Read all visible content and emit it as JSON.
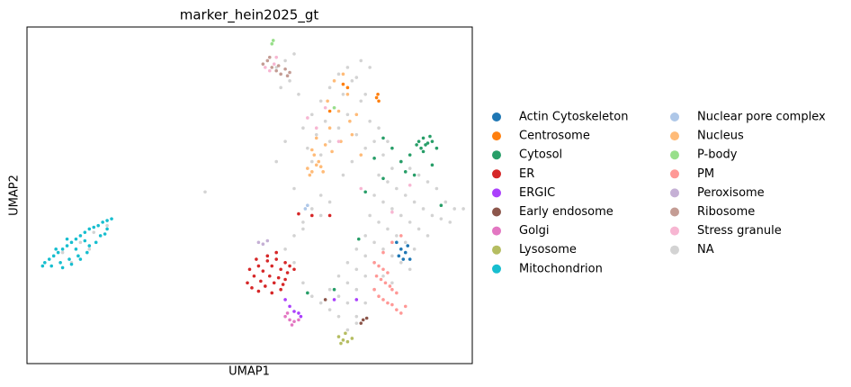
{
  "chart_data": {
    "type": "scatter",
    "title": "marker_hein2025_gt",
    "xlabel": "UMAP1",
    "ylabel": "UMAP2",
    "xlim": [
      0,
      100
    ],
    "ylim": [
      0,
      100
    ],
    "series": [
      {
        "name": "Actin Cytoskeleton",
        "color": "#1f77b4",
        "x": [
          83,
          84,
          85,
          84.5,
          85.5,
          83.5,
          86
        ],
        "y": [
          36,
          34,
          33,
          31,
          35,
          32,
          31
        ]
      },
      {
        "name": "Centrosome",
        "color": "#ff7f0e",
        "x": [
          78.5,
          78.8,
          79,
          71,
          72,
          68
        ],
        "y": [
          79,
          80,
          78,
          83,
          82,
          75
        ]
      },
      {
        "name": "Cytosol",
        "color": "#279e68",
        "x": [
          88,
          89,
          90,
          91,
          88.5,
          89.5,
          90.5,
          87.5,
          92,
          89,
          86,
          84,
          82,
          85,
          80,
          78,
          87,
          91,
          93,
          76,
          80,
          74.5,
          69,
          63
        ],
        "y": [
          66,
          67,
          65.5,
          66,
          64,
          65,
          67.5,
          65,
          64,
          63,
          62,
          60,
          64,
          57,
          55,
          61,
          56,
          59,
          47,
          51,
          67,
          37,
          22,
          21
        ]
      },
      {
        "name": "ER",
        "color": "#d62728",
        "x": [
          50,
          52,
          54,
          56,
          58,
          59,
          51,
          53,
          55,
          57,
          49.5,
          52.5,
          54.5,
          56.5,
          58.5,
          50.5,
          53.5,
          55.5,
          57.5,
          51.5,
          54,
          56,
          52,
          58,
          60,
          57,
          55,
          64,
          61,
          68
        ],
        "y": [
          28,
          29,
          30.5,
          31,
          30,
          29,
          26,
          27.5,
          29,
          28,
          24,
          24.5,
          26,
          25.5,
          27,
          22.5,
          23,
          24,
          23.5,
          31,
          32,
          33,
          21.5,
          25,
          28,
          22,
          21,
          44,
          44.5,
          44
        ]
      },
      {
        "name": "ERGIC",
        "color": "#aa40fc",
        "x": [
          58,
          59,
          60,
          61,
          61.5,
          69,
          74
        ],
        "y": [
          19,
          17,
          15.5,
          15,
          14,
          19,
          19
        ]
      },
      {
        "name": "Early endosome",
        "color": "#8c564b",
        "x": [
          75.5,
          76.3,
          75,
          67
        ],
        "y": [
          13,
          13.5,
          12,
          19
        ]
      },
      {
        "name": "Golgi",
        "color": "#e377c2",
        "x": [
          58,
          59,
          60,
          59.5,
          58.5,
          61
        ],
        "y": [
          14,
          13,
          12.5,
          11.5,
          15,
          13
        ]
      },
      {
        "name": "Lysosome",
        "color": "#b5bd61",
        "x": [
          70,
          71,
          72,
          71.5,
          73,
          70.5
        ],
        "y": [
          8,
          7,
          6.5,
          9,
          7.5,
          6
        ]
      },
      {
        "name": "Mitochondrion",
        "color": "#17becf",
        "x": [
          4,
          5,
          6,
          7,
          8,
          9,
          10,
          11,
          12,
          13,
          14,
          15,
          16,
          17,
          18,
          19,
          5.5,
          7.5,
          9.5,
          11.5,
          13.5,
          15.5,
          8,
          10,
          12,
          14,
          6.5,
          16.5,
          18,
          17.5,
          3.5,
          9,
          13,
          11
        ],
        "y": [
          30,
          31,
          32,
          33,
          34,
          35,
          36,
          37,
          38,
          39,
          40,
          40.5,
          41,
          42,
          42.5,
          43,
          29,
          30,
          31,
          32,
          33,
          36,
          28.5,
          29.5,
          31,
          35,
          34,
          38,
          40,
          38.5,
          29,
          37,
          36.5,
          34
        ]
      },
      {
        "name": "Nuclear pore complex",
        "color": "#aec7e8",
        "x": [
          62.5,
          63
        ],
        "y": [
          46,
          47
        ]
      },
      {
        "name": "Nucleus",
        "color": "#ffbb78",
        "x": [
          63,
          64,
          65,
          66,
          64.5,
          65.5,
          63.5,
          66.5,
          67,
          68,
          70,
          72,
          74,
          69,
          71,
          73,
          75,
          68.5,
          70.5,
          67.5,
          72.5,
          65,
          64
        ],
        "y": [
          58,
          57,
          59,
          58.5,
          62,
          60,
          56,
          57,
          65,
          70,
          75,
          80,
          74,
          84,
          86,
          68,
          62,
          63,
          66,
          78,
          72,
          67,
          63.5
        ]
      },
      {
        "name": "P-body",
        "color": "#98df8a",
        "x": [
          55,
          55.3,
          69
        ],
        "y": [
          95,
          96,
          76
        ]
      },
      {
        "name": "PM",
        "color": "#ff9896",
        "x": [
          78,
          79,
          80,
          81,
          78.5,
          79.5,
          80.5,
          81.5,
          82,
          83,
          79,
          80,
          81,
          82,
          83,
          84,
          78,
          80,
          82,
          84,
          85
        ],
        "y": [
          30,
          29,
          28,
          27,
          26,
          25,
          24,
          23,
          22,
          21,
          20,
          19,
          18,
          17.5,
          16,
          15,
          22,
          33,
          36,
          38,
          17
        ]
      },
      {
        "name": "Peroxisome",
        "color": "#c5b0d5",
        "x": [
          52,
          53,
          54
        ],
        "y": [
          36,
          35.5,
          36.5
        ]
      },
      {
        "name": "Ribosome",
        "color": "#c49c94",
        "x": [
          53,
          54,
          55,
          56,
          57,
          58,
          59,
          54.5,
          56.5,
          58.5
        ],
        "y": [
          89,
          90,
          88,
          87,
          86,
          87.5,
          86.5,
          91,
          88.5,
          85.5
        ]
      },
      {
        "name": "Stress granule",
        "color": "#f7b6d2",
        "x": [
          53.5,
          54.5,
          55.5,
          56,
          63,
          65,
          67,
          70,
          86,
          82,
          75
        ],
        "y": [
          88,
          87,
          89,
          91,
          73,
          70,
          76,
          66,
          53,
          45,
          52
        ]
      },
      {
        "name": "NA",
        "color": "#d3d3d3",
        "x": [
          62,
          64,
          66,
          68,
          70,
          72,
          74,
          76,
          63,
          65,
          67,
          69,
          71,
          73,
          75,
          77,
          64,
          66,
          68,
          70,
          72,
          74,
          76,
          78,
          80,
          82,
          84,
          86,
          88,
          90,
          92,
          94,
          96,
          98,
          79,
          81,
          83,
          85,
          87,
          89,
          91,
          93,
          95,
          78,
          80,
          82,
          84,
          86,
          88,
          90,
          77,
          79,
          81,
          83,
          85,
          87,
          76,
          78,
          80,
          82,
          84,
          86,
          74,
          76,
          78,
          80,
          82,
          72,
          74,
          76,
          78,
          70,
          72,
          74,
          76,
          68,
          70,
          72,
          74,
          70,
          72,
          74,
          66,
          68,
          64,
          62,
          60,
          58,
          60,
          62,
          64,
          66,
          56,
          58,
          60,
          57,
          59,
          61,
          40,
          56,
          58,
          60,
          62,
          66,
          68,
          71,
          73,
          75,
          77,
          79,
          81,
          8,
          12,
          15,
          18,
          10,
          14
        ],
        "y": [
          70,
          74,
          78,
          82,
          86,
          88,
          85,
          80,
          64,
          68,
          72,
          76,
          80,
          84,
          78,
          72,
          60,
          62,
          66,
          70,
          74,
          68,
          64,
          66,
          62,
          58,
          60,
          58,
          56,
          54,
          52,
          48,
          46,
          46,
          56,
          54,
          52,
          50,
          48,
          46,
          44,
          43,
          42,
          50,
          48,
          46,
          44,
          42,
          40,
          38,
          44,
          42,
          40,
          38,
          36,
          34,
          38,
          36,
          34,
          32,
          30,
          28,
          34,
          32,
          30,
          26,
          24,
          30,
          28,
          26,
          22,
          26,
          24,
          22,
          18,
          22,
          20,
          18,
          14,
          14,
          10,
          12,
          18,
          16,
          20,
          24,
          30,
          34,
          38,
          42,
          46,
          50,
          88,
          90,
          92,
          82,
          84,
          80,
          51,
          60,
          66,
          52,
          40,
          44,
          48,
          56,
          60,
          90,
          88,
          70,
          66,
          33,
          36,
          39,
          41,
          30,
          34
        ]
      }
    ]
  }
}
